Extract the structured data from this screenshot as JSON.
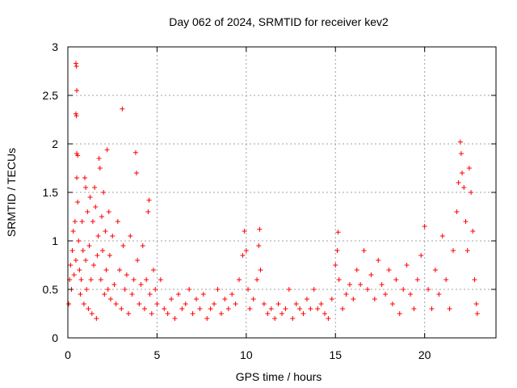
{
  "chart_data": {
    "type": "scatter",
    "title": "Day 062 of 2024, SRMTID for receiver kev2",
    "xlabel": "GPS time / hours",
    "ylabel": "SRMTID / TECUs",
    "xlim": [
      0,
      24
    ],
    "ylim": [
      0,
      3
    ],
    "xticks": [
      0,
      5,
      10,
      15,
      20
    ],
    "xtick_labels": [
      "0",
      "5",
      "10",
      "15",
      "20"
    ],
    "yticks": [
      0,
      0.5,
      1,
      1.5,
      2,
      2.5,
      3
    ],
    "ytick_labels": [
      "0",
      "0.5",
      "1",
      "1.5",
      "2",
      "2.5",
      "3"
    ],
    "grid": true,
    "marker": "+",
    "color": "#ff0000",
    "series": [
      {
        "name": "kev2",
        "points": [
          [
            0.05,
            0.35
          ],
          [
            0.1,
            0.6
          ],
          [
            0.15,
            0.75
          ],
          [
            0.2,
            0.5
          ],
          [
            0.25,
            0.9
          ],
          [
            0.3,
            1.1
          ],
          [
            0.35,
            0.65
          ],
          [
            0.4,
            1.2
          ],
          [
            0.45,
            0.8
          ],
          [
            0.5,
            1.65
          ],
          [
            0.45,
            2.83
          ],
          [
            0.48,
            2.8
          ],
          [
            0.5,
            2.55
          ],
          [
            0.45,
            2.31
          ],
          [
            0.48,
            2.29
          ],
          [
            0.5,
            1.9
          ],
          [
            0.55,
            1.88
          ],
          [
            0.55,
            1.4
          ],
          [
            0.6,
            1.0
          ],
          [
            0.65,
            0.7
          ],
          [
            0.7,
            0.45
          ],
          [
            0.75,
            0.6
          ],
          [
            0.8,
            1.2
          ],
          [
            0.85,
            0.9
          ],
          [
            0.9,
            0.35
          ],
          [
            0.95,
            1.65
          ],
          [
            1.0,
            1.55
          ],
          [
            1.0,
            0.8
          ],
          [
            1.05,
            0.5
          ],
          [
            1.1,
            1.3
          ],
          [
            1.15,
            0.3
          ],
          [
            1.2,
            0.95
          ],
          [
            1.25,
            1.45
          ],
          [
            1.3,
            0.6
          ],
          [
            1.35,
            0.25
          ],
          [
            1.4,
            1.2
          ],
          [
            1.45,
            0.75
          ],
          [
            1.5,
            1.55
          ],
          [
            1.55,
            1.35
          ],
          [
            1.6,
            0.2
          ],
          [
            1.65,
            0.85
          ],
          [
            1.7,
            1.05
          ],
          [
            1.75,
            1.85
          ],
          [
            1.8,
            1.75
          ],
          [
            1.85,
            0.6
          ],
          [
            1.9,
            1.25
          ],
          [
            1.95,
            0.9
          ],
          [
            2.0,
            1.5
          ],
          [
            2.05,
            0.45
          ],
          [
            2.1,
            1.1
          ],
          [
            2.15,
            0.7
          ],
          [
            2.2,
            1.94
          ],
          [
            2.25,
            0.5
          ],
          [
            2.3,
            1.3
          ],
          [
            2.35,
            0.85
          ],
          [
            2.4,
            0.4
          ],
          [
            2.5,
            1.05
          ],
          [
            2.6,
            0.55
          ],
          [
            2.7,
            0.35
          ],
          [
            2.8,
            1.2
          ],
          [
            2.9,
            0.7
          ],
          [
            3.0,
            0.3
          ],
          [
            3.05,
            2.36
          ],
          [
            3.1,
            0.95
          ],
          [
            3.2,
            0.5
          ],
          [
            3.3,
            0.65
          ],
          [
            3.4,
            0.25
          ],
          [
            3.5,
            1.05
          ],
          [
            3.6,
            0.45
          ],
          [
            3.7,
            0.6
          ],
          [
            3.8,
            1.91
          ],
          [
            3.85,
            1.7
          ],
          [
            3.9,
            0.8
          ],
          [
            4.0,
            0.35
          ],
          [
            4.1,
            0.55
          ],
          [
            4.2,
            0.95
          ],
          [
            4.3,
            0.3
          ],
          [
            4.4,
            0.6
          ],
          [
            4.5,
            1.3
          ],
          [
            4.55,
            1.42
          ],
          [
            4.6,
            0.45
          ],
          [
            4.7,
            0.25
          ],
          [
            4.8,
            0.7
          ],
          [
            4.9,
            0.5
          ],
          [
            5.0,
            0.35
          ],
          [
            5.2,
            0.6
          ],
          [
            5.4,
            0.3
          ],
          [
            5.6,
            0.25
          ],
          [
            5.8,
            0.4
          ],
          [
            6.0,
            0.2
          ],
          [
            6.2,
            0.45
          ],
          [
            6.4,
            0.3
          ],
          [
            6.6,
            0.35
          ],
          [
            6.8,
            0.5
          ],
          [
            7.0,
            0.25
          ],
          [
            7.2,
            0.4
          ],
          [
            7.4,
            0.3
          ],
          [
            7.6,
            0.45
          ],
          [
            7.8,
            0.2
          ],
          [
            8.0,
            0.3
          ],
          [
            8.2,
            0.35
          ],
          [
            8.4,
            0.5
          ],
          [
            8.6,
            0.25
          ],
          [
            8.8,
            0.4
          ],
          [
            9.0,
            0.3
          ],
          [
            9.2,
            0.45
          ],
          [
            9.4,
            0.35
          ],
          [
            9.6,
            0.6
          ],
          [
            9.8,
            0.85
          ],
          [
            9.9,
            1.1
          ],
          [
            10.0,
            0.9
          ],
          [
            10.1,
            0.5
          ],
          [
            10.2,
            0.3
          ],
          [
            10.4,
            0.4
          ],
          [
            10.6,
            0.6
          ],
          [
            10.7,
            0.95
          ],
          [
            10.75,
            1.12
          ],
          [
            10.8,
            0.7
          ],
          [
            11.0,
            0.35
          ],
          [
            11.2,
            0.25
          ],
          [
            11.4,
            0.3
          ],
          [
            11.6,
            0.2
          ],
          [
            11.8,
            0.35
          ],
          [
            12.0,
            0.25
          ],
          [
            12.2,
            0.3
          ],
          [
            12.4,
            0.5
          ],
          [
            12.6,
            0.2
          ],
          [
            12.8,
            0.35
          ],
          [
            13.0,
            0.3
          ],
          [
            13.2,
            0.25
          ],
          [
            13.4,
            0.4
          ],
          [
            13.6,
            0.3
          ],
          [
            13.8,
            0.5
          ],
          [
            14.0,
            0.3
          ],
          [
            14.2,
            0.35
          ],
          [
            14.4,
            0.25
          ],
          [
            14.6,
            0.2
          ],
          [
            14.8,
            0.4
          ],
          [
            15.0,
            0.75
          ],
          [
            15.1,
            0.9
          ],
          [
            15.15,
            1.09
          ],
          [
            15.2,
            0.6
          ],
          [
            15.4,
            0.3
          ],
          [
            15.6,
            0.45
          ],
          [
            15.8,
            0.55
          ],
          [
            16.0,
            0.4
          ],
          [
            16.2,
            0.7
          ],
          [
            16.4,
            0.55
          ],
          [
            16.6,
            0.9
          ],
          [
            16.8,
            0.5
          ],
          [
            17.0,
            0.65
          ],
          [
            17.2,
            0.4
          ],
          [
            17.4,
            0.8
          ],
          [
            17.6,
            0.55
          ],
          [
            17.8,
            0.45
          ],
          [
            18.0,
            0.7
          ],
          [
            18.2,
            0.35
          ],
          [
            18.4,
            0.6
          ],
          [
            18.6,
            0.25
          ],
          [
            18.8,
            0.5
          ],
          [
            19.0,
            0.75
          ],
          [
            19.2,
            0.45
          ],
          [
            19.4,
            0.3
          ],
          [
            19.6,
            0.6
          ],
          [
            19.8,
            0.85
          ],
          [
            20.0,
            1.15
          ],
          [
            20.2,
            0.5
          ],
          [
            20.4,
            0.3
          ],
          [
            20.6,
            0.7
          ],
          [
            20.8,
            0.45
          ],
          [
            21.0,
            1.05
          ],
          [
            21.2,
            0.6
          ],
          [
            21.4,
            0.3
          ],
          [
            21.6,
            0.9
          ],
          [
            21.8,
            1.3
          ],
          [
            21.9,
            1.6
          ],
          [
            22.0,
            2.02
          ],
          [
            22.05,
            1.9
          ],
          [
            22.1,
            1.7
          ],
          [
            22.2,
            1.55
          ],
          [
            22.3,
            1.2
          ],
          [
            22.4,
            0.9
          ],
          [
            22.5,
            1.75
          ],
          [
            22.6,
            1.5
          ],
          [
            22.7,
            1.1
          ],
          [
            22.8,
            0.6
          ],
          [
            22.9,
            0.35
          ],
          [
            22.95,
            0.25
          ]
        ]
      }
    ]
  }
}
